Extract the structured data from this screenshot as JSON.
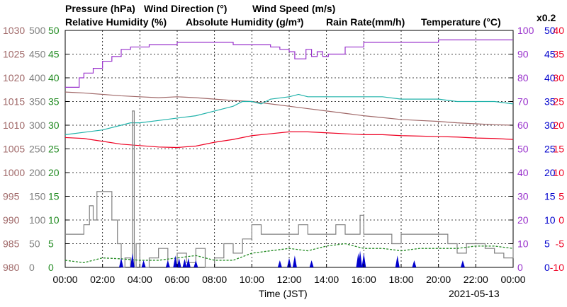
{
  "chart_data": {
    "type": "line",
    "date": "2021-05-13",
    "xlabel": "Time (JST)",
    "x_ticks": [
      "00:00",
      "02:00",
      "04:00",
      "06:00",
      "08:00",
      "10:00",
      "12:00",
      "14:00",
      "16:00",
      "18:00",
      "20:00",
      "22:00",
      "00:00"
    ],
    "legend": [
      {
        "key": "pressure",
        "label": "Pressure (hPa)",
        "color": "#a06868"
      },
      {
        "key": "wind_dir",
        "label": "Wind Direction (°)",
        "color": "#808080"
      },
      {
        "key": "wind_speed",
        "label": "Wind Speed (m/s)",
        "color": "#228b22"
      },
      {
        "key": "rel_hum",
        "label": "Relative Humidity (%)",
        "color": "#9932cc"
      },
      {
        "key": "abs_hum",
        "label": "Absolute Humidity (g/m³)",
        "color": "#20b2aa"
      },
      {
        "key": "rain",
        "label": "Rain Rate(mm/h)",
        "color": "#0000cd"
      },
      {
        "key": "temp",
        "label": "Temperature (°C)",
        "color": "#ee0022"
      }
    ],
    "abs_hum_scale_note": "x0.2",
    "axes": {
      "pressure": {
        "ylim": [
          980,
          1030
        ],
        "ticks": [
          "1030",
          "1025",
          "1020",
          "1015",
          "1010",
          "1005",
          "1000",
          "995",
          "990",
          "985",
          "980"
        ],
        "color": "#a06868"
      },
      "wind_dir": {
        "ylim": [
          0,
          500
        ],
        "ticks": [
          "500",
          "450",
          "400",
          "350",
          "300",
          "250",
          "200",
          "150",
          "100",
          "50",
          "0"
        ],
        "color": "#808080"
      },
      "wind_speed": {
        "ylim": [
          0,
          50
        ],
        "ticks": [
          "50",
          "45",
          "40",
          "35",
          "30",
          "25",
          "20",
          "15",
          "10",
          "5",
          "0"
        ],
        "color": "#228b22"
      },
      "rel_hum": {
        "ylim": [
          0,
          100
        ],
        "ticks": [
          "100",
          "90",
          "80",
          "70",
          "60",
          "50",
          "40",
          "30",
          "20",
          "10",
          "0"
        ],
        "color": "#9932cc"
      },
      "rain": {
        "ylim": [
          0,
          50
        ],
        "ticks": [
          "50",
          "45",
          "40",
          "35",
          "30",
          "25",
          "20",
          "15",
          "10",
          "5",
          "0"
        ],
        "color": "#0000cd"
      },
      "temp": {
        "ylim": [
          -10,
          40
        ],
        "ticks": [
          "40",
          "35",
          "30",
          "25",
          "20",
          "15",
          "10",
          "5",
          "0",
          "-5",
          "-10"
        ],
        "color": "#ee0022"
      }
    },
    "grid": true,
    "series": [
      {
        "key": "rel_hum",
        "axis": "rel_hum",
        "color": "#9932cc",
        "step": true,
        "x": [
          0,
          0.75,
          1.0,
          1.5,
          2.0,
          2.5,
          3.0,
          3.5,
          4.0,
          4.5,
          5.0,
          6.0,
          7.0,
          8.0,
          9.0,
          10.0,
          10.5,
          11.0,
          11.5,
          12.0,
          12.3,
          12.6,
          12.9,
          13.2,
          13.5,
          13.8,
          14.1,
          14.5,
          15.0,
          16.0,
          17.0,
          18.0,
          19.0,
          20.0,
          21.0,
          22.0,
          23.0,
          24.0
        ],
        "y": [
          76,
          80,
          82,
          84,
          87,
          89,
          92,
          93,
          93,
          94,
          94,
          95,
          95,
          95,
          94,
          94,
          94,
          93,
          92,
          91,
          88,
          88,
          92,
          89,
          91,
          89,
          90,
          90,
          93,
          95,
          95,
          95,
          95,
          96,
          96,
          96,
          96,
          96
        ]
      },
      {
        "key": "pressure",
        "axis": "pressure",
        "color": "#a06868",
        "x": [
          0,
          1,
          2,
          3,
          4,
          5,
          6,
          7,
          8,
          9,
          10,
          11,
          12,
          13,
          14,
          15,
          16,
          17,
          18,
          19,
          20,
          21,
          22,
          23,
          24
        ],
        "y": [
          1017.0,
          1016.8,
          1016.5,
          1016.2,
          1016.0,
          1015.8,
          1016.0,
          1015.8,
          1015.5,
          1015.2,
          1015.0,
          1014.5,
          1014.0,
          1013.5,
          1013.0,
          1012.5,
          1012.0,
          1011.6,
          1011.2,
          1011.0,
          1010.8,
          1010.5,
          1010.3,
          1010.1,
          1010.0
        ]
      },
      {
        "key": "abs_hum",
        "axis": "rel_hum",
        "color": "#20b2aa",
        "x": [
          0,
          1,
          2,
          3,
          3.5,
          4,
          5,
          6,
          7,
          8,
          9,
          9.5,
          10,
          10.5,
          11,
          12,
          12.5,
          13,
          14,
          15,
          16,
          17,
          18,
          19,
          20,
          21,
          22,
          23,
          24
        ],
        "y": [
          56,
          57,
          58,
          60,
          61,
          61,
          62,
          63,
          64,
          66,
          68,
          70,
          70,
          69,
          71,
          72,
          73,
          72,
          72,
          72,
          72,
          72,
          71,
          71,
          71,
          70,
          70,
          70,
          69
        ]
      },
      {
        "key": "temp",
        "axis": "temp",
        "color": "#ee0022",
        "x": [
          0,
          1,
          2,
          3,
          4,
          5,
          6,
          7,
          8,
          9,
          10,
          11,
          12,
          13,
          14,
          15,
          16,
          17,
          18,
          19,
          20,
          21,
          22,
          23,
          24
        ],
        "y": [
          17.4,
          17.2,
          16.6,
          16.0,
          15.7,
          15.4,
          15.3,
          15.6,
          16.4,
          17.0,
          17.8,
          18.2,
          18.6,
          18.6,
          18.4,
          18.2,
          18.0,
          18.0,
          17.8,
          17.7,
          17.6,
          17.5,
          17.3,
          17.2,
          17.0
        ]
      },
      {
        "key": "wind_dir",
        "axis": "wind_dir",
        "color": "#808080",
        "step": true,
        "x": [
          0,
          0.5,
          1.0,
          1.3,
          1.5,
          1.7,
          2.0,
          2.5,
          2.8,
          3.0,
          3.2,
          3.5,
          3.6,
          3.7,
          3.8,
          4.0,
          4.5,
          5.0,
          5.5,
          6.0,
          6.5,
          7.0,
          7.5,
          8.0,
          8.5,
          9.0,
          9.5,
          10.0,
          10.5,
          11.0,
          11.5,
          12.0,
          12.5,
          13.0,
          13.5,
          14.0,
          14.5,
          15.0,
          15.5,
          15.8,
          16.0,
          16.5,
          17.0,
          17.5,
          18.0,
          18.5,
          19.0,
          19.5,
          20.0,
          20.5,
          21.0,
          21.5,
          22.0,
          22.5,
          23.0,
          23.5,
          24.0
        ],
        "y": [
          70,
          70,
          90,
          130,
          100,
          160,
          160,
          100,
          50,
          0,
          20,
          0,
          330,
          0,
          50,
          0,
          20,
          40,
          0,
          30,
          10,
          40,
          0,
          20,
          50,
          30,
          60,
          90,
          70,
          70,
          70,
          70,
          90,
          70,
          70,
          70,
          90,
          70,
          70,
          110,
          70,
          70,
          70,
          50,
          70,
          70,
          70,
          70,
          70,
          50,
          30,
          50,
          50,
          40,
          30,
          20,
          50
        ]
      },
      {
        "key": "wind_speed",
        "axis": "wind_speed",
        "color": "#228b22",
        "x": [
          0,
          1,
          2,
          3,
          4,
          5,
          6,
          7,
          8,
          9,
          10,
          11,
          12,
          13,
          14,
          15,
          16,
          17,
          18,
          19,
          20,
          21,
          22,
          23,
          24
        ],
        "y": [
          1.5,
          1.0,
          2.0,
          1.8,
          1.5,
          1.5,
          2.0,
          2.5,
          1.5,
          1.5,
          3.0,
          3.5,
          4.0,
          3.5,
          4.5,
          5.0,
          4.0,
          4.0,
          3.5,
          4.0,
          4.0,
          4.0,
          4.5,
          4.5,
          4.0
        ]
      },
      {
        "key": "rain",
        "axis": "rain",
        "color": "#0000cd",
        "bars": true,
        "x": [
          3.0,
          3.6,
          4.2,
          5.5,
          5.9,
          6.1,
          6.4,
          6.6,
          7.0,
          11.5,
          12.0,
          12.3,
          13.2,
          15.7,
          15.8,
          16.0,
          17.8,
          18.7,
          21.3
        ],
        "y": [
          2.0,
          3.0,
          1.5,
          1.5,
          2.5,
          2.0,
          1.8,
          2.0,
          1.5,
          1.5,
          2.0,
          2.5,
          1.5,
          3.0,
          3.5,
          3.0,
          2.5,
          1.5,
          1.5
        ]
      }
    ]
  }
}
